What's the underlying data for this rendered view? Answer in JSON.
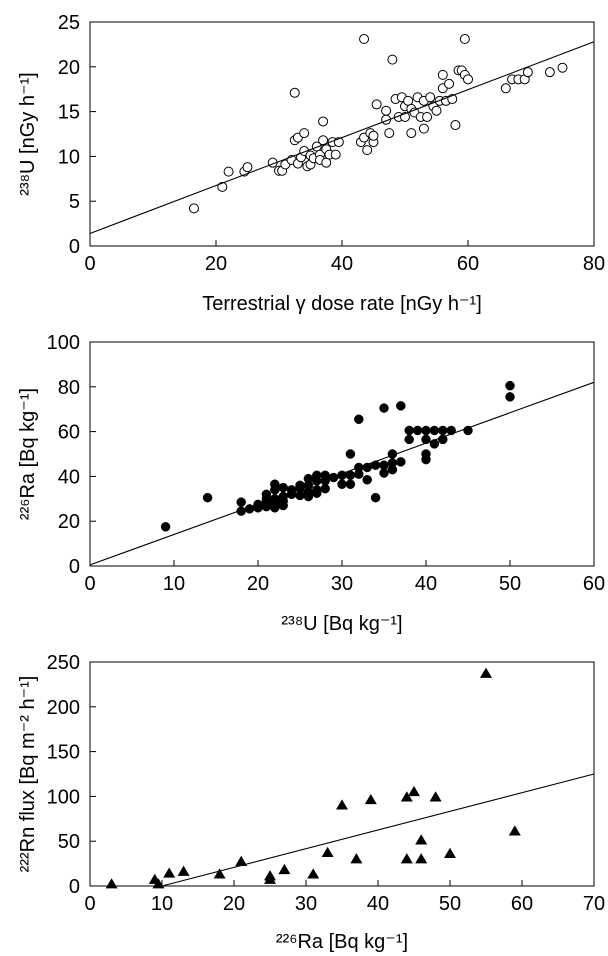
{
  "chart_data": [
    {
      "type": "scatter",
      "marker": "open-circle",
      "xlabel": "Terrestrial γ dose rate [nGy h⁻¹]",
      "ylabel": "²³⁸U [nGy h⁻¹]",
      "xlim": [
        0,
        80
      ],
      "ylim": [
        0,
        25
      ],
      "xticks": [
        "0",
        "20",
        "40",
        "60",
        "80"
      ],
      "yticks": [
        "0",
        "5",
        "10",
        "15",
        "20",
        "25"
      ],
      "fit_line": [
        [
          0,
          1.4
        ],
        [
          80,
          22.8
        ]
      ],
      "points": [
        [
          16.5,
          4.2
        ],
        [
          21,
          6.6
        ],
        [
          22,
          8.3
        ],
        [
          24.5,
          8.3
        ],
        [
          25,
          8.8
        ],
        [
          29,
          9.3
        ],
        [
          30,
          8.4
        ],
        [
          30.5,
          8.4
        ],
        [
          31,
          9.1
        ],
        [
          32,
          9.6
        ],
        [
          32.5,
          17.1
        ],
        [
          32.5,
          11.8
        ],
        [
          33,
          12.1
        ],
        [
          33,
          9.2
        ],
        [
          33.5,
          9.9
        ],
        [
          34,
          12.6
        ],
        [
          34,
          10.6
        ],
        [
          34.5,
          8.9
        ],
        [
          35,
          10.1
        ],
        [
          35,
          9.1
        ],
        [
          35.5,
          9.8
        ],
        [
          36,
          11.1
        ],
        [
          36.5,
          10.2
        ],
        [
          36.5,
          9.6
        ],
        [
          37,
          11.8
        ],
        [
          37,
          13.9
        ],
        [
          37.5,
          10.8
        ],
        [
          37.5,
          9.3
        ],
        [
          38,
          10.2
        ],
        [
          38.5,
          11.6
        ],
        [
          39,
          10.2
        ],
        [
          39.5,
          11.6
        ],
        [
          43,
          11.6
        ],
        [
          43.5,
          23.1
        ],
        [
          43.5,
          12.1
        ],
        [
          44,
          10.7
        ],
        [
          44.5,
          12.6
        ],
        [
          45,
          11.6
        ],
        [
          45,
          12.3
        ],
        [
          45.5,
          15.8
        ],
        [
          47,
          14.1
        ],
        [
          47,
          15.1
        ],
        [
          47.5,
          12.6
        ],
        [
          48,
          20.8
        ],
        [
          48.5,
          16.4
        ],
        [
          49,
          14.4
        ],
        [
          49.5,
          16.6
        ],
        [
          50,
          14.4
        ],
        [
          50,
          15.6
        ],
        [
          50.5,
          16.2
        ],
        [
          51,
          15.3
        ],
        [
          51,
          12.6
        ],
        [
          51.5,
          14.9
        ],
        [
          52,
          16.6
        ],
        [
          52.5,
          14.4
        ],
        [
          53,
          16.2
        ],
        [
          53,
          13.1
        ],
        [
          53.5,
          14.4
        ],
        [
          54,
          16.6
        ],
        [
          54.5,
          15.6
        ],
        [
          55,
          15.1
        ],
        [
          55.5,
          16.2
        ],
        [
          56,
          17.6
        ],
        [
          56,
          19.1
        ],
        [
          56.5,
          16.2
        ],
        [
          57,
          18.1
        ],
        [
          57.5,
          16.4
        ],
        [
          58,
          13.5
        ],
        [
          58.5,
          19.6
        ],
        [
          59,
          19.6
        ],
        [
          59.5,
          19.1
        ],
        [
          59.5,
          23.1
        ],
        [
          60,
          18.6
        ],
        [
          66,
          17.6
        ],
        [
          67,
          18.6
        ],
        [
          68,
          18.6
        ],
        [
          69,
          18.6
        ],
        [
          69.5,
          19.4
        ],
        [
          73,
          19.4
        ],
        [
          75,
          19.9
        ]
      ]
    },
    {
      "type": "scatter",
      "marker": "filled-circle",
      "xlabel": "²³⁸U [Bq kg⁻¹]",
      "ylabel": "²²⁶Ra [Bq kg⁻¹]",
      "xlim": [
        0,
        60
      ],
      "ylim": [
        0,
        100
      ],
      "xticks": [
        "0",
        "10",
        "20",
        "30",
        "40",
        "50",
        "60"
      ],
      "yticks": [
        "0",
        "20",
        "40",
        "60",
        "80",
        "100"
      ],
      "fit_line": [
        [
          0,
          0.5
        ],
        [
          60,
          82
        ]
      ],
      "points": [
        [
          9,
          17.5
        ],
        [
          14,
          30.5
        ],
        [
          18,
          28.5
        ],
        [
          18,
          24.5
        ],
        [
          19,
          25.5
        ],
        [
          20,
          27.5
        ],
        [
          20,
          26
        ],
        [
          21,
          29
        ],
        [
          21,
          32
        ],
        [
          21,
          30
        ],
        [
          21,
          26.5
        ],
        [
          22,
          34
        ],
        [
          22,
          30
        ],
        [
          22,
          28
        ],
        [
          22,
          26
        ],
        [
          22,
          36.5
        ],
        [
          23,
          35
        ],
        [
          23,
          31
        ],
        [
          23,
          29
        ],
        [
          23,
          27
        ],
        [
          24,
          34
        ],
        [
          24,
          32
        ],
        [
          25,
          34.5
        ],
        [
          25,
          31.5
        ],
        [
          25,
          36
        ],
        [
          26,
          36
        ],
        [
          26,
          33
        ],
        [
          26,
          31
        ],
        [
          26,
          39
        ],
        [
          27,
          40.5
        ],
        [
          27,
          38
        ],
        [
          27,
          34
        ],
        [
          27,
          32.5
        ],
        [
          28,
          40.5
        ],
        [
          28,
          38
        ],
        [
          28,
          34.5
        ],
        [
          29,
          39.5
        ],
        [
          30,
          40.5
        ],
        [
          30,
          36.5
        ],
        [
          31,
          40.5
        ],
        [
          31,
          36.5
        ],
        [
          31,
          50
        ],
        [
          32,
          65.5
        ],
        [
          32,
          44
        ],
        [
          32,
          41
        ],
        [
          33,
          38.5
        ],
        [
          33,
          44
        ],
        [
          34,
          30.5
        ],
        [
          34,
          45
        ],
        [
          35,
          70.5
        ],
        [
          35,
          45
        ],
        [
          35,
          41.5
        ],
        [
          36,
          50
        ],
        [
          36,
          46
        ],
        [
          36,
          43
        ],
        [
          37,
          71.5
        ],
        [
          37,
          46.5
        ],
        [
          38,
          60.5
        ],
        [
          38,
          56.5
        ],
        [
          39,
          60.5
        ],
        [
          40,
          60.5
        ],
        [
          40,
          50
        ],
        [
          40,
          47.5
        ],
        [
          40,
          56.5
        ],
        [
          41,
          60.5
        ],
        [
          41,
          54.5
        ],
        [
          42,
          60.5
        ],
        [
          42,
          56.5
        ],
        [
          43,
          60.5
        ],
        [
          45,
          60.5
        ],
        [
          50,
          80.5
        ],
        [
          50,
          75.5
        ]
      ]
    },
    {
      "type": "scatter",
      "marker": "filled-triangle",
      "xlabel": "²²⁶Ra [Bq kg⁻¹]",
      "ylabel": "²²²Rn flux [Bq m⁻² h⁻¹]",
      "xlim": [
        0,
        70
      ],
      "ylim": [
        0,
        250
      ],
      "xticks": [
        "0",
        "10",
        "20",
        "30",
        "40",
        "50",
        "60",
        "70"
      ],
      "yticks": [
        "0",
        "50",
        "100",
        "150",
        "200",
        "250"
      ],
      "fit_line": [
        [
          10,
          0
        ],
        [
          70,
          125
        ]
      ],
      "points": [
        [
          3,
          2
        ],
        [
          9,
          7
        ],
        [
          9.5,
          2
        ],
        [
          11,
          14
        ],
        [
          13,
          16
        ],
        [
          18,
          13
        ],
        [
          21,
          27
        ],
        [
          25,
          11
        ],
        [
          25,
          7
        ],
        [
          27,
          18
        ],
        [
          31,
          13
        ],
        [
          33,
          37
        ],
        [
          35,
          90
        ],
        [
          37,
          30
        ],
        [
          39,
          96
        ],
        [
          44,
          99
        ],
        [
          44,
          30
        ],
        [
          45,
          105
        ],
        [
          46,
          51
        ],
        [
          46,
          30
        ],
        [
          48,
          99
        ],
        [
          50,
          36
        ],
        [
          55,
          237
        ],
        [
          59,
          61
        ]
      ]
    }
  ]
}
